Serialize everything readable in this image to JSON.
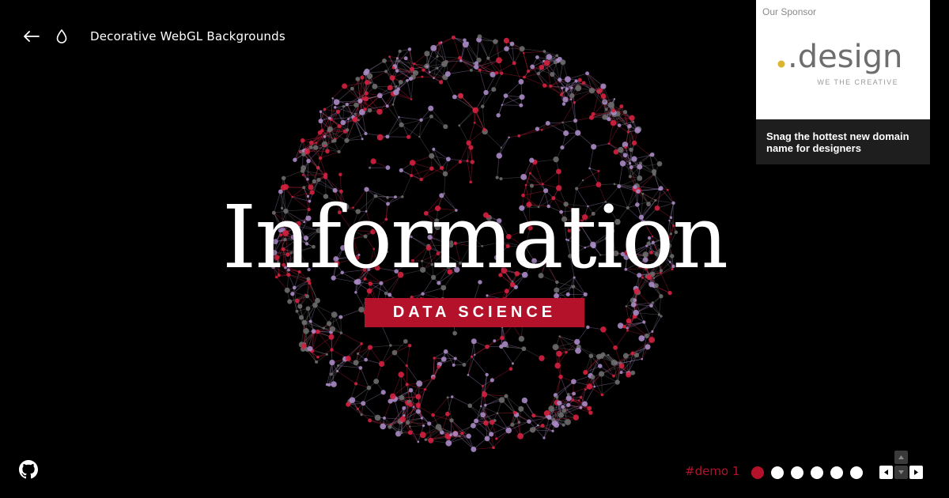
{
  "header": {
    "title": "Decorative WebGL Backgrounds",
    "back_icon": "arrow-left-icon",
    "theme_icon": "droplet-icon"
  },
  "sponsor": {
    "label": "Our Sponsor",
    "logo_text": ".design",
    "logo_subtext": "WE THE CREATIVE",
    "text": "Snag the hottest new domain name for designers"
  },
  "hero": {
    "title": "Information",
    "tagline": "DATA SCIENCE"
  },
  "footer": {
    "github_icon": "github-icon",
    "demo_label": "#demo 1",
    "dots": [
      true,
      false,
      false,
      false,
      false,
      false
    ]
  },
  "colors": {
    "accent": "#b3122a",
    "node_red": "#d4203f",
    "node_lilac": "#a98ac4",
    "node_grey": "#6b6b6b",
    "background": "#000000"
  }
}
